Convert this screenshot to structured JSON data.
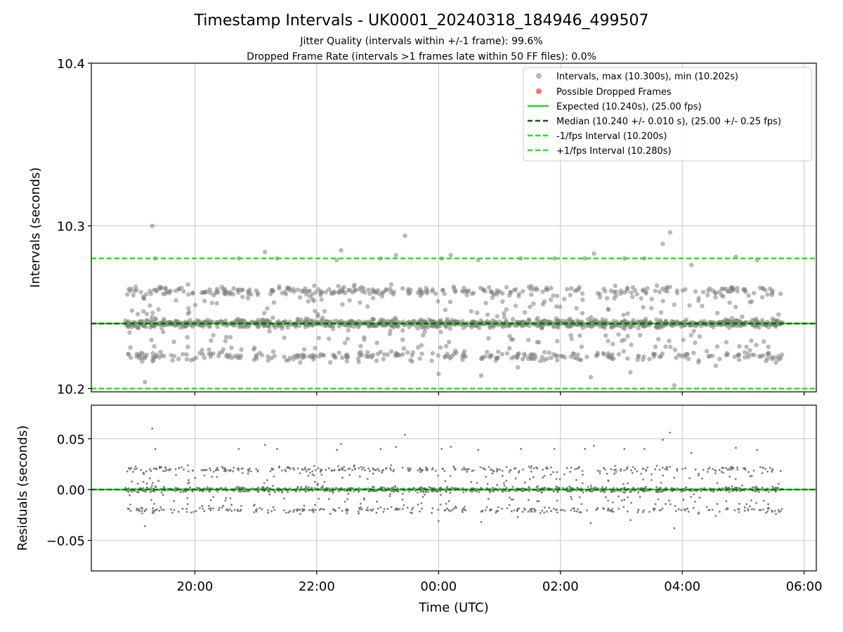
{
  "figure": {
    "title": "Timestamp Intervals - UK0001_20240318_184946_499507",
    "subtitle_1": "Jitter Quality (intervals within +/-1 frame): 99.6%",
    "subtitle_2": "Dropped Frame Rate (intervals >1 frames late within 50 FF files): 0.0%"
  },
  "colors": {
    "points": "#808080",
    "dropped": "#ff4d4d",
    "expected": "#1ed81e",
    "median": "#006400",
    "band": "#1ee61e",
    "grid": "#b0b0b0"
  },
  "chart_data": [
    {
      "type": "scatter",
      "ylabel": "Intervals (seconds)",
      "ylim": [
        10.198,
        10.4
      ],
      "yticks": [
        {
          "value": 10.2,
          "label": "10.2"
        },
        {
          "value": 10.3,
          "label": "10.3"
        },
        {
          "value": 10.4,
          "label": "10.4"
        }
      ],
      "x_unit": "hours since 00:00 UTC 2024-03-19",
      "xlim": [
        -5.7,
        6.2
      ],
      "grid": true,
      "legend_position": "top-right",
      "legend": [
        {
          "label": "Intervals, max (10.300s), min (10.202s)",
          "style": "marker-gray"
        },
        {
          "label": "Possible Dropped Frames",
          "style": "marker-red"
        },
        {
          "label": "Expected (10.240s), (25.00 fps)",
          "style": "line-expected"
        },
        {
          "label": "Median (10.240 +/- 0.010 s), (25.00 +/- 0.25 fps)",
          "style": "line-median"
        },
        {
          "label": "-1/fps Interval (10.200s)",
          "style": "line-band"
        },
        {
          "label": "+1/fps Interval (10.280s)",
          "style": "line-band"
        }
      ],
      "reference_lines": {
        "expected": 10.24,
        "median": 10.24,
        "minus_one_fps": 10.2,
        "plus_one_fps": 10.28
      },
      "series": [
        {
          "name": "Intervals, max (10.300s), min (10.202s)",
          "x_range": [
            -5.15,
            5.65
          ],
          "center": 10.24,
          "levels": [
            10.22,
            10.24,
            10.26
          ],
          "max": 10.3,
          "min": 10.202,
          "approx_points": 1800
        }
      ],
      "outliers": [
        {
          "x": -4.7,
          "y": 10.3
        },
        {
          "x": -4.65,
          "y": 10.28
        },
        {
          "x": -4.82,
          "y": 10.204
        },
        {
          "x": -3.28,
          "y": 10.28
        },
        {
          "x": -2.85,
          "y": 10.284
        },
        {
          "x": -2.65,
          "y": 10.28
        },
        {
          "x": -1.6,
          "y": 10.285
        },
        {
          "x": -1.67,
          "y": 10.279
        },
        {
          "x": -0.55,
          "y": 10.294
        },
        {
          "x": -0.7,
          "y": 10.282
        },
        {
          "x": -0.95,
          "y": 10.28
        },
        {
          "x": 0.05,
          "y": 10.28
        },
        {
          "x": 0.2,
          "y": 10.282
        },
        {
          "x": 0.65,
          "y": 10.279
        },
        {
          "x": 1.35,
          "y": 10.28
        },
        {
          "x": 1.9,
          "y": 10.28
        },
        {
          "x": 2.4,
          "y": 10.28
        },
        {
          "x": 2.55,
          "y": 10.283
        },
        {
          "x": 3.05,
          "y": 10.28
        },
        {
          "x": 3.38,
          "y": 10.28
        },
        {
          "x": 3.68,
          "y": 10.289
        },
        {
          "x": 3.8,
          "y": 10.296
        },
        {
          "x": 3.87,
          "y": 10.202
        },
        {
          "x": 4.15,
          "y": 10.276
        },
        {
          "x": 4.88,
          "y": 10.281
        },
        {
          "x": 5.23,
          "y": 10.279
        },
        {
          "x": 0.0,
          "y": 10.209
        },
        {
          "x": 0.7,
          "y": 10.208
        },
        {
          "x": 1.3,
          "y": 10.213
        },
        {
          "x": 2.5,
          "y": 10.207
        },
        {
          "x": 3.15,
          "y": 10.21
        },
        {
          "x": 4.55,
          "y": 10.214
        }
      ]
    },
    {
      "type": "scatter",
      "ylabel": "Residuals (seconds)",
      "xlabel": "Time (UTC)",
      "ylim": [
        -0.08,
        0.083
      ],
      "yticks": [
        {
          "value": 0.05,
          "label": "0.05"
        },
        {
          "value": 0.0,
          "label": "0.00"
        },
        {
          "value": -0.05,
          "label": "−0.05"
        }
      ],
      "x_unit": "hours since 00:00 UTC 2024-03-19",
      "xlim": [
        -5.7,
        6.2
      ],
      "xticks": [
        {
          "value": -4,
          "label": "20:00"
        },
        {
          "value": -2,
          "label": "22:00"
        },
        {
          "value": 0,
          "label": "00:00"
        },
        {
          "value": 2,
          "label": "02:00"
        },
        {
          "value": 4,
          "label": "04:00"
        },
        {
          "value": 6,
          "label": "06:00"
        }
      ],
      "grid": true,
      "reference_lines": {
        "zero": 0.0
      },
      "series": [
        {
          "name": "Residuals",
          "x_range": [
            -5.15,
            5.65
          ],
          "levels": [
            -0.02,
            0.0,
            0.02
          ],
          "max": 0.06,
          "min": -0.038
        }
      ]
    }
  ]
}
